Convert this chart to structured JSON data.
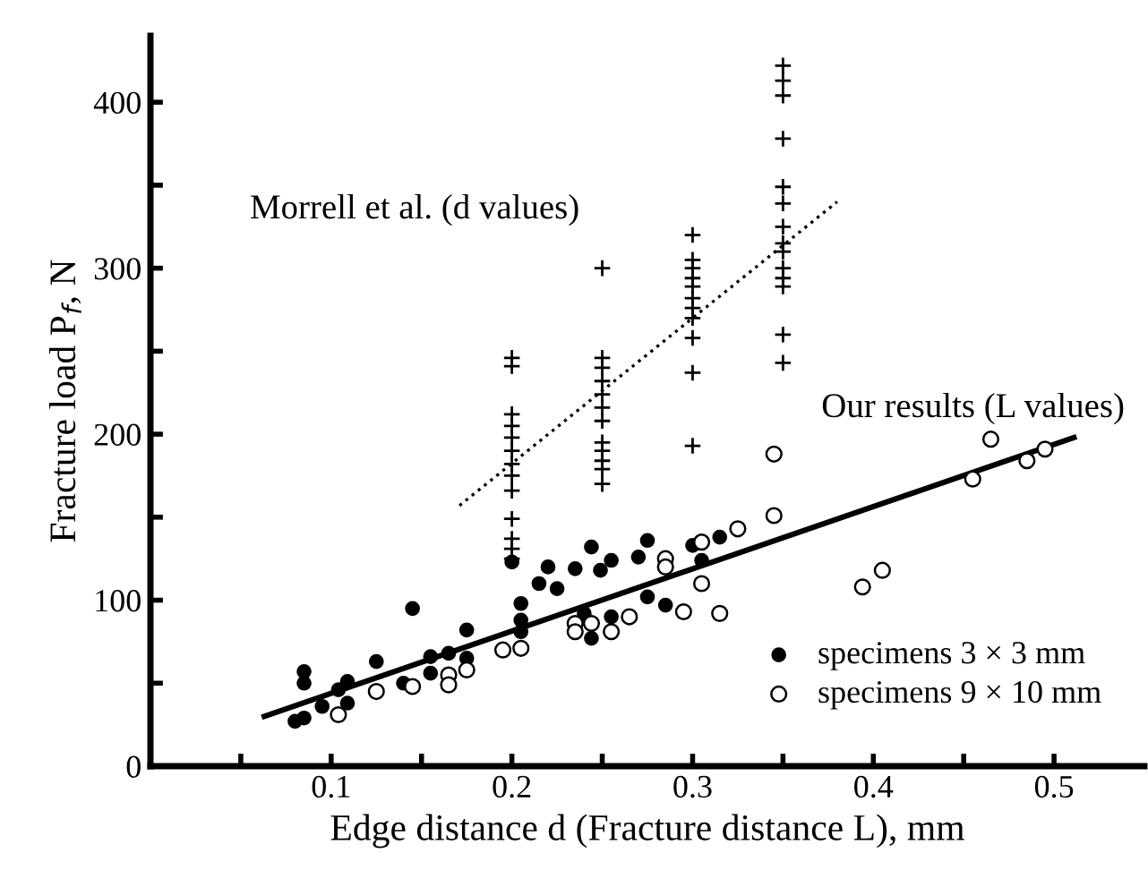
{
  "chart_data": {
    "type": "scatter",
    "xlabel": "Edge distance d (Fracture distance L), mm",
    "ylabel": "Fracture load P$_{f}$, N",
    "xlim": [
      0,
      0.55
    ],
    "xticks": [
      {
        "value": 0.05,
        "label": null
      },
      0.1,
      {
        "value": 0.15,
        "label": null
      },
      0.2,
      {
        "value": 0.25,
        "label": null
      },
      0.3,
      {
        "value": 0.35,
        "label": null
      },
      0.4,
      {
        "value": 0.45,
        "label": null
      },
      0.5
    ],
    "ylim": [
      0,
      440
    ],
    "yticks": [
      0,
      {
        "value": 50,
        "label": null
      },
      100,
      {
        "value": 150,
        "label": null
      },
      200,
      {
        "value": 250,
        "label": null
      },
      300,
      {
        "value": 350,
        "label": null
      },
      400
    ],
    "grid": false,
    "legend": "bottom right",
    "annotations": [
      "Morrell et al. (d values)",
      "Our results (L values)"
    ],
    "series": [
      {
        "name": "specimens 3 × 3 mm",
        "marker": "circle",
        "color": "#000000",
        "x": [
          0.08,
          0.085,
          0.085,
          0.085,
          0.095,
          0.104,
          0.109,
          0.109,
          0.125,
          0.145,
          0.14,
          0.155,
          0.155,
          0.165,
          0.175,
          0.175,
          0.2,
          0.205,
          0.205,
          0.205,
          0.215,
          0.22,
          0.225,
          0.235,
          0.24,
          0.244,
          0.244,
          0.249,
          0.255,
          0.255,
          0.27,
          0.275,
          0.275,
          0.285,
          0.3,
          0.305,
          0.315
        ],
        "values": [
          27,
          29,
          57,
          50,
          36,
          46,
          51,
          38,
          63,
          95,
          50,
          66,
          56,
          68,
          82,
          65,
          123,
          98,
          88,
          81,
          110,
          120,
          107,
          119,
          92,
          132,
          77,
          118,
          124,
          90,
          126,
          136,
          102,
          97,
          133,
          124,
          138
        ]
      },
      {
        "name": "specimens 9 × 10 mm",
        "marker": "circle",
        "color": "#ffffff",
        "x": [
          0.104,
          0.125,
          0.145,
          0.165,
          0.165,
          0.175,
          0.195,
          0.205,
          0.235,
          0.235,
          0.244,
          0.255,
          0.265,
          0.285,
          0.285,
          0.295,
          0.305,
          0.305,
          0.315,
          0.325,
          0.345,
          0.345,
          0.394,
          0.405,
          0.455,
          0.465,
          0.485,
          0.495
        ],
        "values": [
          31,
          45,
          48,
          55,
          49,
          58,
          70,
          71,
          86,
          81,
          86,
          81,
          90,
          125,
          120,
          93,
          135,
          110,
          92,
          143,
          188,
          151,
          108,
          118,
          173,
          197,
          184,
          191
        ]
      },
      {
        "marker": "cross",
        "color": "#000000",
        "x": [
          0.2,
          0.2,
          0.2,
          0.2,
          0.2,
          0.2,
          0.2,
          0.2,
          0.2,
          0.2,
          0.2,
          0.2,
          0.2,
          0.25,
          0.25,
          0.25,
          0.25,
          0.25,
          0.25,
          0.25,
          0.25,
          0.25,
          0.25,
          0.25,
          0.25,
          0.3,
          0.3,
          0.3,
          0.3,
          0.3,
          0.3,
          0.3,
          0.3,
          0.3,
          0.3,
          0.3,
          0.35,
          0.35,
          0.35,
          0.35,
          0.35,
          0.35,
          0.35,
          0.35,
          0.35,
          0.35,
          0.35,
          0.35,
          0.35,
          0.35
        ],
        "values": [
          246,
          241,
          212,
          205,
          198,
          190,
          182,
          175,
          166,
          149,
          137,
          131,
          125,
          300,
          246,
          240,
          232,
          224,
          216,
          208,
          195,
          190,
          184,
          179,
          170,
          320,
          305,
          300,
          294,
          289,
          282,
          276,
          270,
          258,
          237,
          193,
          422,
          413,
          404,
          378,
          349,
          339,
          325,
          315,
          310,
          300,
          294,
          289,
          260,
          243
        ]
      },
      {
        "type": "line",
        "line_style": "solid",
        "color": "#000000",
        "x": [
          0.063,
          0.511
        ],
        "values": [
          30,
          198
        ]
      },
      {
        "type": "line",
        "line_style": "dotted",
        "color": "#000000",
        "x": [
          0.171,
          0.38
        ],
        "values": [
          157,
          340
        ]
      }
    ]
  }
}
